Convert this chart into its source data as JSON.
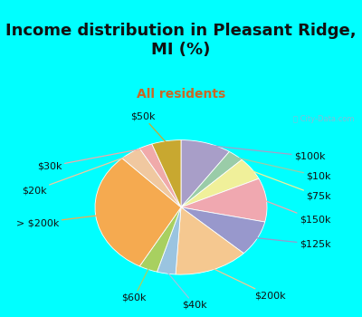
{
  "title": "Income distribution in Pleasant Ridge,\nMI (%)",
  "subtitle": "All residents",
  "bg_color": "#00FFFF",
  "chart_bg_top": "#d8f0e8",
  "chart_bg_bottom": "#c8e8e0",
  "labels": [
    "$100k",
    "$10k",
    "$75k",
    "$150k",
    "$125k",
    "$200k",
    "$40k",
    "$60k",
    "> $200k",
    "$20k",
    "$30k",
    "$50k"
  ],
  "values": [
    9.5,
    3.0,
    5.5,
    10.5,
    8.5,
    14.0,
    3.5,
    3.5,
    30.0,
    4.0,
    2.5,
    5.5
  ],
  "colors": [
    "#a89ec8",
    "#9acca8",
    "#f0f09a",
    "#f0a8b0",
    "#9898cc",
    "#f5c890",
    "#9ac4e0",
    "#a8d060",
    "#f5aa50",
    "#f0c8a0",
    "#f0aaaa",
    "#c8a830"
  ],
  "startangle": 90,
  "title_fontsize": 13,
  "subtitle_fontsize": 10,
  "label_fontsize": 8
}
